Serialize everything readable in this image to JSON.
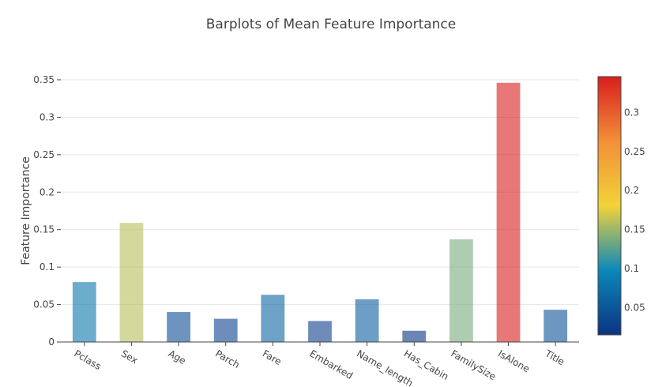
{
  "chart_data": {
    "type": "bar",
    "title": "Barplots of Mean Feature Importance",
    "xlabel": "",
    "ylabel": "Feature Importance",
    "categories": [
      "Pclass",
      "Sex",
      "Age",
      "Parch",
      "Fare",
      "Embarked",
      "Name_length",
      "Has_Cabin",
      "FamilySize",
      "IsAlone",
      "Title"
    ],
    "values": [
      0.08,
      0.159,
      0.04,
      0.031,
      0.063,
      0.028,
      0.057,
      0.015,
      0.137,
      0.346,
      0.043
    ],
    "ylim": [
      0,
      0.35
    ],
    "yticks": [
      0,
      0.05,
      0.1,
      0.15,
      0.2,
      0.25,
      0.3,
      0.35
    ],
    "ytick_labels": [
      "0",
      "0.05",
      "0.1",
      "0.15",
      "0.2",
      "0.25",
      "0.3",
      "0.35"
    ],
    "grid": true,
    "colorscale": "Portland",
    "colorbar": {
      "range": [
        0.015,
        0.346
      ],
      "ticks": [
        0.05,
        0.1,
        0.15,
        0.2,
        0.25,
        0.3
      ],
      "tick_labels": [
        "0.05",
        "0.1",
        "0.15",
        "0.2",
        "0.25",
        "0.3"
      ],
      "colors": [
        "#0c3383",
        "#0a88ba",
        "#f2d338",
        "#f28f38",
        "#d91e1e"
      ]
    },
    "bar_opacity": 0.6
  }
}
